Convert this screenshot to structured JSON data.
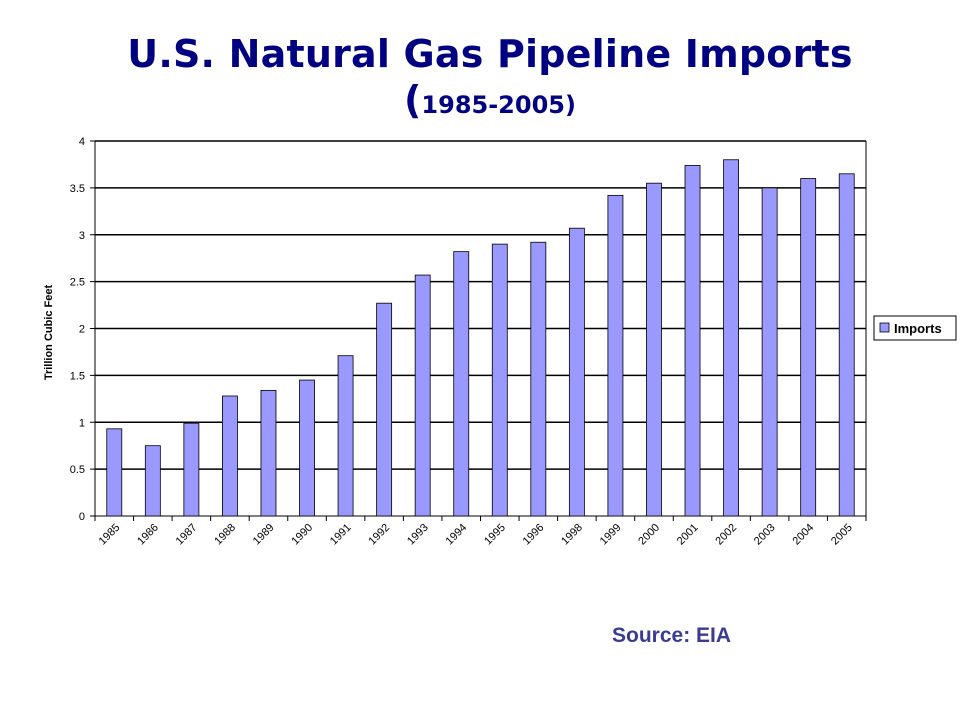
{
  "page": {
    "title": "U.S. Natural Gas Pipeline Imports",
    "subtitle_open": "(",
    "subtitle_years": "1985-2005)",
    "source": "Source: EIA"
  },
  "colors": {
    "title": "#000080",
    "bar_fill": "#9999ff",
    "bar_stroke": "#000000",
    "source": "#3b3b8f"
  },
  "chart_data": {
    "type": "bar",
    "title": "U.S. Natural Gas Pipeline Imports (1985-2005)",
    "xlabel": "",
    "ylabel": "Trillion Cubic Feet",
    "categories": [
      "1985",
      "1986",
      "1987",
      "1988",
      "1989",
      "1990",
      "1991",
      "1992",
      "1993",
      "1994",
      "1995",
      "1996",
      "1998",
      "1999",
      "2000",
      "2001",
      "2002",
      "2003",
      "2004",
      "2005"
    ],
    "series": [
      {
        "name": "Imports",
        "values": [
          0.93,
          0.75,
          0.99,
          1.28,
          1.34,
          1.45,
          1.71,
          2.27,
          2.57,
          2.82,
          2.9,
          2.92,
          3.07,
          3.42,
          3.55,
          3.74,
          3.8,
          3.5,
          3.6,
          3.65
        ]
      }
    ],
    "ylim": [
      0,
      4
    ],
    "yticks": [
      "0",
      "0.5",
      "1",
      "1.5",
      "2",
      "2.5",
      "3",
      "3.5",
      "4"
    ],
    "grid": true,
    "legend_position": "right"
  }
}
